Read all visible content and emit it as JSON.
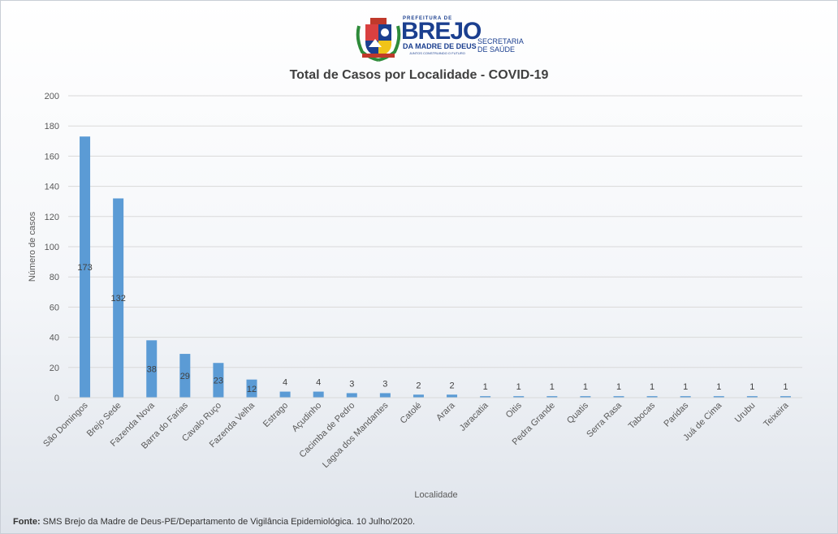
{
  "logo": {
    "top_text": "PREFEITURA DE",
    "name": "BREJO",
    "sub": "DA MADRE DE DEUS",
    "slogan": "JUNTOS CONSTRUINDO O FUTURO",
    "secretaria_line1": "SECRETARIA",
    "secretaria_line2": "DE SAÚDE"
  },
  "colors": {
    "bar": "#5b9bd5",
    "grid": "#d9d9d9",
    "text": "#595959"
  },
  "chart_data": {
    "type": "bar",
    "title": "Total de Casos por Localidade - COVID-19",
    "xlabel": "Localidade",
    "ylabel": "Número de casos",
    "ylim": [
      0,
      200
    ],
    "yticks": [
      0,
      20,
      40,
      60,
      80,
      100,
      120,
      140,
      160,
      180,
      200
    ],
    "grid": true,
    "categories": [
      "São Domingos",
      "Brejo Sede",
      "Fazenda Nova",
      "Barra do Farias",
      "Cavalo Ruço",
      "Fazenda Velha",
      "Estrago",
      "Açudinho",
      "Cacimba de Pedro",
      "Lagoa dos Mandantes",
      "Catolé",
      "Arara",
      "Jaracatia",
      "Oitis",
      "Pedra Grande",
      "Quatis",
      "Serra Rasa",
      "Tabocas",
      "Paridas",
      "Juá de Cima",
      "Urubu",
      "Teixeira"
    ],
    "values": [
      173,
      132,
      38,
      29,
      23,
      12,
      4,
      4,
      3,
      3,
      2,
      2,
      1,
      1,
      1,
      1,
      1,
      1,
      1,
      1,
      1,
      1
    ]
  },
  "source": {
    "label": "Fonte:",
    "text": " SMS Brejo da Madre de Deus-PE/Departamento de Vigilância Epidemiológica. 10 Julho/2020."
  }
}
